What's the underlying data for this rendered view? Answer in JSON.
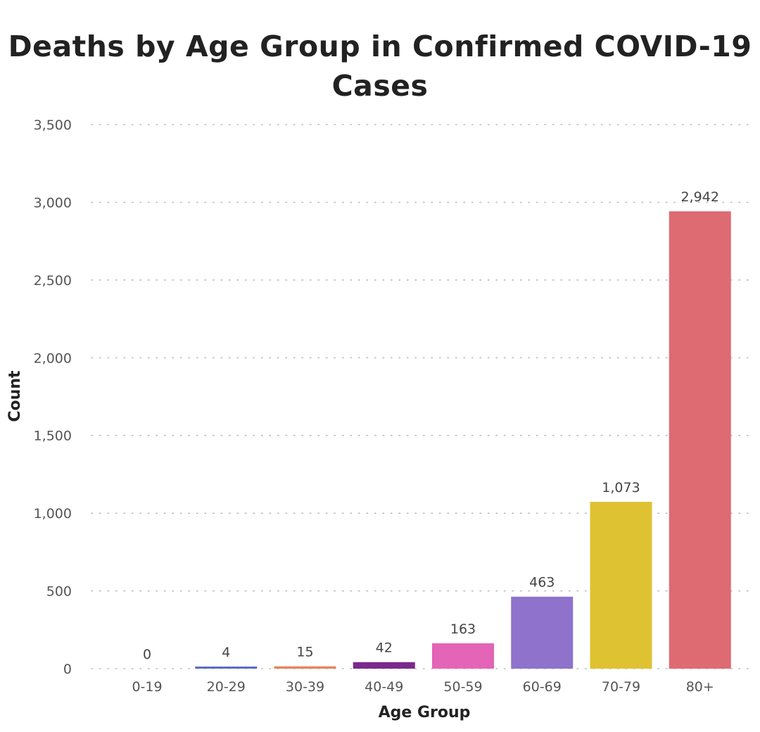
{
  "chart_data": {
    "type": "bar",
    "title": "Deaths by Age Group in Confirmed COVID-19\nCases",
    "xlabel": "Age Group",
    "ylabel": "Count",
    "categories": [
      "0-19",
      "20-29",
      "30-39",
      "40-49",
      "50-59",
      "60-69",
      "70-79",
      "80+"
    ],
    "values": [
      0,
      4,
      15,
      42,
      163,
      463,
      1073,
      2942
    ],
    "value_labels": [
      "0",
      "4",
      "15",
      "42",
      "163",
      "463",
      "1,073",
      "2,942"
    ],
    "colors": [
      "#3b78c3",
      "#5a6fc4",
      "#e8845a",
      "#7b2a8c",
      "#e464b7",
      "#8e72cc",
      "#dfc232",
      "#de6a72"
    ],
    "ylim": [
      0,
      3500
    ],
    "yticks": [
      0,
      500,
      1000,
      1500,
      2000,
      2500,
      3000,
      3500
    ],
    "ytick_labels": [
      "0",
      "500",
      "1,000",
      "1,500",
      "2,000",
      "2,500",
      "3,000",
      "3,500"
    ],
    "grid": true,
    "grid_style": "dotted"
  }
}
